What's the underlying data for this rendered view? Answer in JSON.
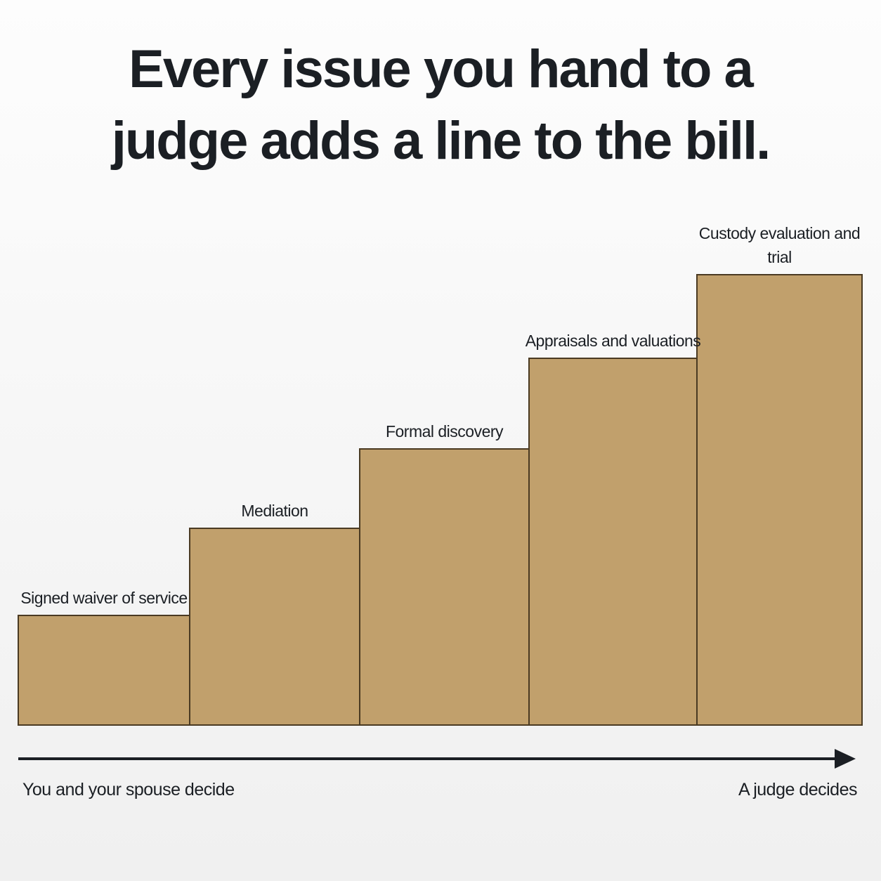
{
  "title": "Every issue you hand to a judge adds a line to the bill.",
  "steps": [
    {
      "label": "Signed waiver of service"
    },
    {
      "label": "Mediation"
    },
    {
      "label": "Formal discovery"
    },
    {
      "label": "Appraisals and valuations"
    },
    {
      "label": "Custody evaluation and trial"
    }
  ],
  "axis": {
    "start": "You and your spouse decide",
    "end": "A judge decides"
  }
}
